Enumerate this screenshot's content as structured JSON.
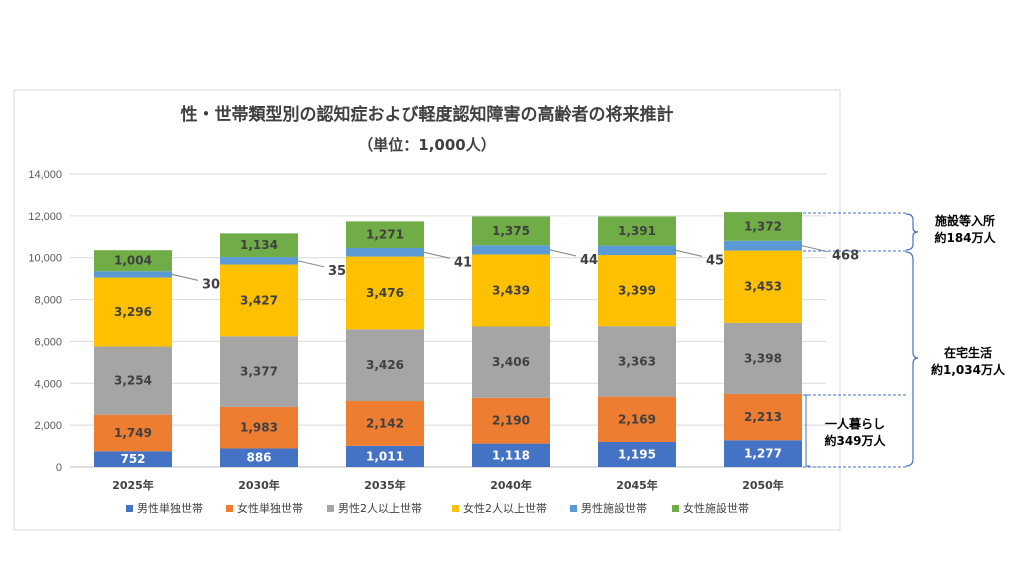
{
  "chart_data": {
    "type": "bar",
    "stacked": true,
    "title": "性・世帯類型別の認知症および軽度認知障害の高齢者の将来推計",
    "subtitle": "（単位：1,000人）",
    "categories": [
      "2025年",
      "2030年",
      "2035年",
      "2040年",
      "2045年",
      "2050年"
    ],
    "ylim": [
      0,
      14000
    ],
    "yticks": [
      "0",
      "2,000",
      "4,000",
      "6,000",
      "8,000",
      "10,000",
      "12,000",
      "14,000"
    ],
    "ytick_values": [
      0,
      2000,
      4000,
      6000,
      8000,
      10000,
      12000,
      14000
    ],
    "grid": true,
    "legend_position": "bottom",
    "series": [
      {
        "name": "男性単独世帯",
        "color": "#4472C4",
        "label_color": "#ffffff",
        "values": [
          752,
          886,
          1011,
          1118,
          1195,
          1277
        ],
        "labels": [
          "752",
          "886",
          "1,011",
          "1,118",
          "1,195",
          "1,277"
        ]
      },
      {
        "name": "女性単独世帯",
        "color": "#ED7D31",
        "label_color": "#404040",
        "values": [
          1749,
          1983,
          2142,
          2190,
          2169,
          2213
        ],
        "labels": [
          "1,749",
          "1,983",
          "2,142",
          "2,190",
          "2,169",
          "2,213"
        ]
      },
      {
        "name": "男性2人以上世帯",
        "color": "#A5A5A5",
        "label_color": "#404040",
        "values": [
          3254,
          3377,
          3426,
          3406,
          3363,
          3398
        ],
        "labels": [
          "3,254",
          "3,377",
          "3,426",
          "3,406",
          "3,363",
          "3,398"
        ]
      },
      {
        "name": "女性2人以上世帯",
        "color": "#FFC000",
        "label_color": "#404040",
        "values": [
          3296,
          3427,
          3476,
          3439,
          3399,
          3453
        ],
        "labels": [
          "3,296",
          "3,427",
          "3,476",
          "3,439",
          "3,399",
          "3,453"
        ]
      },
      {
        "name": "男性施設世帯",
        "color": "#5B9BD5",
        "label_color": "#404040",
        "values": [
          304,
          357,
          410,
          444,
          454,
          468
        ],
        "labels": [
          "304",
          "357",
          "410",
          "444",
          "454",
          "468"
        ]
      },
      {
        "name": "女性施設世帯",
        "color": "#70AD47",
        "label_color": "#404040",
        "values": [
          1004,
          1134,
          1271,
          1375,
          1391,
          1372
        ],
        "labels": [
          "1,004",
          "1,134",
          "1,271",
          "1,375",
          "1,391",
          "1,372"
        ]
      }
    ]
  },
  "annotations": {
    "facility": {
      "line1": "施設等入所",
      "line2": "約184万人"
    },
    "home": {
      "line1": "在宅生活",
      "line2": "約1,034万人"
    },
    "single": {
      "line1": "一人暮らし",
      "line2": "約349万人"
    }
  }
}
